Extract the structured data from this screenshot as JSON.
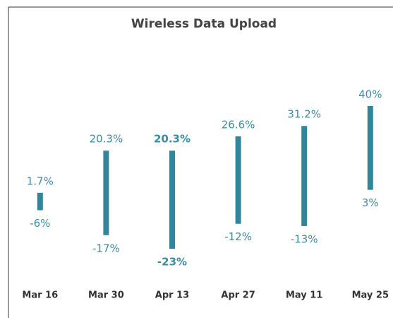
{
  "chart_data": {
    "type": "range-bar",
    "title": "Wireless Data Upload",
    "categories": [
      "Mar 16",
      "Mar 30",
      "Apr 13",
      "Apr 27",
      "May 11",
      "May 25"
    ],
    "series": [
      {
        "color": "#31869b",
        "values": [
          -6,
          -17,
          -23,
          -12,
          -13,
          3
        ],
        "value_labels": [
          "-6%",
          "-17%",
          "-23%",
          "-12%",
          "-13%",
          "3%"
        ]
      },
      {
        "color": "#31869b",
        "values": [
          1.7,
          20.3,
          20.3,
          26.6,
          31.2,
          40
        ],
        "value_labels": [
          "1.7%",
          "20.3%",
          "20.3%",
          "26.6%",
          "31.2%",
          "40%"
        ]
      }
    ],
    "highlight_index": 2
  }
}
